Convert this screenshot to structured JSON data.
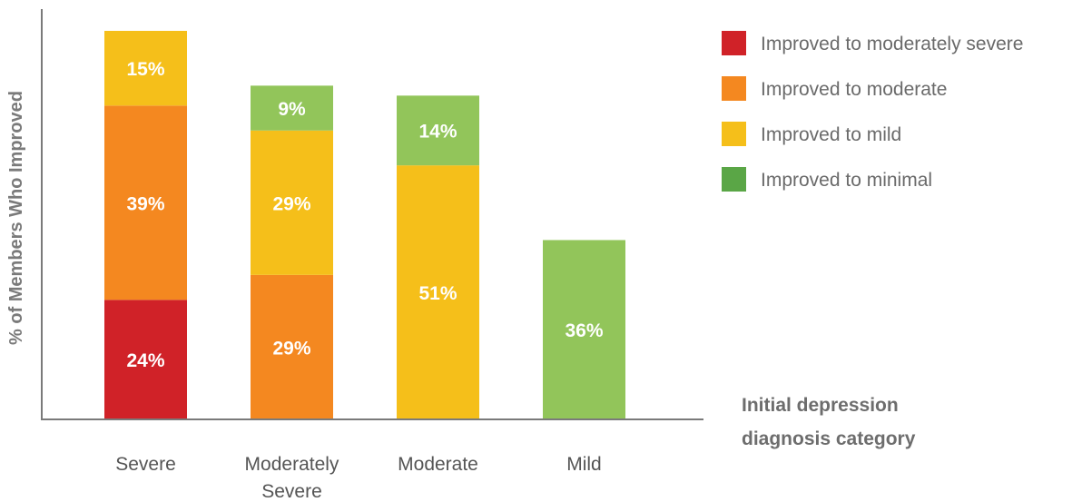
{
  "chart_data": {
    "type": "bar",
    "stacked": true,
    "categories": [
      "Severe",
      "Moderately\nSevere",
      "Moderate",
      "Mild"
    ],
    "series": [
      {
        "name": "Improved to moderately severe",
        "color": "#d02228",
        "values": [
          24,
          0,
          0,
          0
        ]
      },
      {
        "name": "Improved to moderate",
        "color": "#f48820",
        "values": [
          39,
          29,
          0,
          0
        ]
      },
      {
        "name": "Improved to mild",
        "color": "#f5bf1a",
        "values": [
          15,
          29,
          51,
          0
        ]
      },
      {
        "name": "Improved to minimal",
        "color": "#92c55a",
        "values": [
          0,
          9,
          14,
          36
        ]
      }
    ],
    "data_labels": [
      [
        "24%",
        "",
        "",
        ""
      ],
      [
        "39%",
        "29%",
        "",
        ""
      ],
      [
        "15%",
        "29%",
        "51%",
        ""
      ],
      [
        "",
        "9%",
        "14%",
        "36%"
      ]
    ],
    "ylabel": "% of Members Who Improved",
    "xlabel": "Initial depression diagnosis category",
    "ylim": [
      0,
      80
    ],
    "legend_position": "top-right",
    "legend_colors": [
      "#d02228",
      "#f48820",
      "#f5bf1a",
      "#5aa646"
    ],
    "grid": false
  }
}
